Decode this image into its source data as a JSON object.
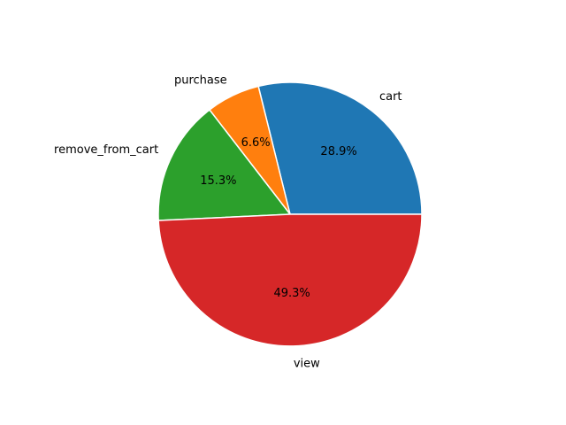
{
  "chart_data": {
    "type": "pie",
    "title": "",
    "start_angle": 0,
    "direction": "counterclockwise",
    "slices": [
      {
        "label": "cart",
        "value": 28.9,
        "pct_label": "28.9%",
        "color": "#1f77b4"
      },
      {
        "label": "purchase",
        "value": 6.6,
        "pct_label": "6.6%",
        "color": "#ff7f0e"
      },
      {
        "label": "remove_from_cart",
        "value": 15.3,
        "pct_label": "15.3%",
        "color": "#2ca02c"
      },
      {
        "label": "view",
        "value": 49.3,
        "pct_label": "49.3%",
        "color": "#d62728"
      }
    ]
  }
}
